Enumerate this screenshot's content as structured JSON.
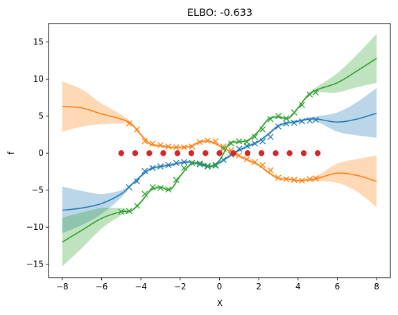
{
  "chart_data": {
    "type": "line",
    "title": "ELBO: -0.633",
    "xlabel": "X",
    "ylabel": "f",
    "xlim": [
      -8.7,
      8.7
    ],
    "ylim": [
      -16.8,
      17.5
    ],
    "xticks": [
      -8,
      -6,
      -4,
      -2,
      0,
      2,
      4,
      6,
      8
    ],
    "yticks": [
      -15,
      -10,
      -5,
      0,
      5,
      10,
      15
    ],
    "grid": false,
    "legend": "none",
    "colors": {
      "blue": "#1f77b4",
      "orange": "#ff7f0e",
      "green": "#2ca02c",
      "red": "#d62728"
    },
    "x_grid": [
      -8,
      -7,
      -6,
      -5,
      -4.5,
      -4,
      -3.5,
      -3,
      -2.5,
      -2,
      -1.5,
      -1,
      -0.5,
      0,
      0.5,
      1,
      1.5,
      2,
      2.5,
      3,
      3.5,
      4,
      4.5,
      5,
      6,
      7,
      8
    ],
    "series": [
      {
        "color": "blue",
        "mean": [
          -7.7,
          -7.4,
          -6.8,
          -5.5,
          -4.3,
          -3.1,
          -2.1,
          -1.8,
          -1.6,
          -1.3,
          -1.2,
          -1.5,
          -1.8,
          -1.3,
          -0.4,
          0.4,
          1.0,
          1.6,
          2.6,
          3.7,
          4.1,
          4.3,
          4.6,
          4.6,
          4.2,
          4.6,
          5.4
        ],
        "lower": [
          -10.8,
          -9.7,
          -8.2,
          -6.0,
          -4.5,
          -3.3,
          -2.3,
          -2.0,
          -1.8,
          -1.5,
          -1.4,
          -1.7,
          -2.0,
          -1.5,
          -0.6,
          0.2,
          0.8,
          1.4,
          2.4,
          3.5,
          3.9,
          4.1,
          4.4,
          4.2,
          2.9,
          2.4,
          2.1
        ],
        "upper": [
          -4.5,
          -5.1,
          -5.5,
          -5.0,
          -4.1,
          -2.9,
          -1.9,
          -1.6,
          -1.4,
          -1.1,
          -1.0,
          -1.3,
          -1.6,
          -1.1,
          -0.2,
          0.6,
          1.2,
          1.8,
          2.8,
          3.9,
          4.3,
          4.5,
          4.8,
          5.0,
          5.5,
          6.9,
          8.8
        ],
        "obs_x": [
          -4.6,
          -4.2,
          -3.8,
          -3.4,
          -3.0,
          -2.6,
          -2.2,
          -1.8,
          -1.4,
          -1.0,
          -0.6,
          -0.2,
          0.2,
          0.6,
          1.0,
          1.4,
          1.8,
          2.2,
          2.6,
          3.0,
          3.4,
          3.8,
          4.2,
          4.6,
          4.9
        ],
        "obs_y": [
          -4.6,
          -3.8,
          -2.4,
          -2.0,
          -1.8,
          -1.6,
          -1.3,
          -1.2,
          -1.3,
          -1.5,
          -1.8,
          -1.6,
          -0.9,
          -0.2,
          0.6,
          1.0,
          1.3,
          1.6,
          2.2,
          3.6,
          4.0,
          4.1,
          4.3,
          4.4,
          4.5
        ]
      },
      {
        "color": "orange",
        "mean": [
          6.3,
          6.1,
          5.3,
          4.6,
          4.0,
          2.5,
          1.2,
          1.0,
          0.8,
          0.8,
          0.9,
          1.5,
          1.6,
          1.0,
          0.3,
          -0.4,
          -1.0,
          -1.6,
          -2.6,
          -3.4,
          -3.5,
          -3.7,
          -3.6,
          -3.4,
          -2.7,
          -3.0,
          -3.8
        ],
        "lower": [
          2.9,
          3.6,
          3.9,
          4.0,
          3.8,
          2.3,
          1.0,
          0.8,
          0.6,
          0.6,
          0.7,
          1.3,
          1.4,
          0.8,
          0.1,
          -0.6,
          -1.2,
          -1.8,
          -2.8,
          -3.6,
          -3.7,
          -3.9,
          -3.8,
          -3.8,
          -4.0,
          -5.2,
          -7.3
        ],
        "upper": [
          9.7,
          8.6,
          6.7,
          5.2,
          4.2,
          2.7,
          1.4,
          1.2,
          1.0,
          1.0,
          1.1,
          1.7,
          1.8,
          1.2,
          0.5,
          -0.2,
          -0.8,
          -1.4,
          -2.4,
          -3.2,
          -3.3,
          -3.5,
          -3.4,
          -3.0,
          -1.4,
          -0.8,
          -0.3
        ],
        "obs_x": [
          -4.6,
          -4.2,
          -3.8,
          -3.4,
          -3.0,
          -2.6,
          -2.2,
          -1.8,
          -1.4,
          -1.0,
          -0.6,
          -0.2,
          0.2,
          0.6,
          1.0,
          1.4,
          1.8,
          2.2,
          2.6,
          3.0,
          3.4,
          3.8,
          4.2,
          4.6,
          4.9
        ],
        "obs_y": [
          4.0,
          3.2,
          1.6,
          1.3,
          1.1,
          0.9,
          0.8,
          0.8,
          0.9,
          1.5,
          1.7,
          1.6,
          0.9,
          0.4,
          -0.3,
          -0.8,
          -1.2,
          -1.6,
          -2.3,
          -3.3,
          -3.5,
          -3.6,
          -3.7,
          -3.5,
          -3.4
        ]
      },
      {
        "color": "green",
        "mean": [
          -12.0,
          -10.4,
          -8.8,
          -7.9,
          -7.8,
          -6.6,
          -5.0,
          -4.6,
          -4.9,
          -3.1,
          -1.6,
          -1.3,
          -1.8,
          -1.0,
          1.3,
          1.5,
          1.8,
          3.0,
          4.6,
          4.9,
          4.7,
          6.1,
          7.8,
          8.6,
          9.5,
          11.1,
          12.8
        ],
        "lower": [
          -15.3,
          -12.8,
          -10.2,
          -8.4,
          -8.0,
          -6.8,
          -5.2,
          -4.8,
          -5.1,
          -3.3,
          -1.8,
          -1.5,
          -2.0,
          -1.2,
          1.1,
          1.3,
          1.6,
          2.8,
          4.4,
          4.7,
          4.5,
          5.9,
          7.6,
          8.2,
          8.2,
          8.9,
          9.5
        ],
        "upper": [
          -8.7,
          -8.0,
          -7.4,
          -7.4,
          -7.6,
          -6.4,
          -4.8,
          -4.4,
          -4.7,
          -2.9,
          -1.4,
          -1.1,
          -1.6,
          -0.8,
          1.5,
          1.7,
          2.0,
          3.2,
          4.8,
          5.1,
          4.9,
          6.3,
          8.0,
          9.0,
          10.8,
          13.3,
          16.1
        ],
        "obs_x": [
          -5.0,
          -4.6,
          -4.2,
          -3.8,
          -3.4,
          -3.0,
          -2.6,
          -2.2,
          -1.8,
          -1.4,
          -1.0,
          -0.6,
          -0.2,
          0.2,
          0.6,
          1.0,
          1.4,
          1.8,
          2.2,
          2.6,
          3.0,
          3.4,
          3.8,
          4.2,
          4.6,
          4.9
        ],
        "obs_y": [
          -7.9,
          -7.8,
          -7.1,
          -5.5,
          -4.6,
          -4.7,
          -4.9,
          -3.6,
          -2.0,
          -1.3,
          -1.4,
          -1.7,
          -1.7,
          0.6,
          1.3,
          1.6,
          1.5,
          2.2,
          3.2,
          4.6,
          5.0,
          4.7,
          5.5,
          6.5,
          7.9,
          8.2
        ]
      }
    ],
    "inducing": {
      "color": "red",
      "x": [
        -5.0,
        -4.29,
        -3.57,
        -2.86,
        -2.14,
        -1.43,
        -0.71,
        0.0,
        0.71,
        1.43,
        2.14,
        2.86,
        3.57,
        4.29,
        5.0
      ],
      "y": [
        0,
        0,
        0,
        0,
        0,
        0,
        0,
        0,
        0,
        0,
        0,
        0,
        0,
        0,
        0
      ]
    }
  }
}
